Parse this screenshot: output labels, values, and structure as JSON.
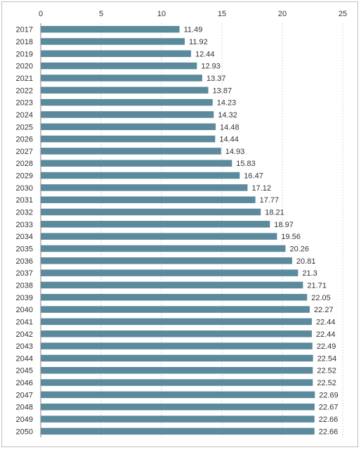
{
  "chart_data": {
    "type": "bar",
    "orientation": "horizontal",
    "title": "",
    "xlabel": "",
    "ylabel": "",
    "xlim": [
      0,
      25
    ],
    "x_ticks": [
      "0",
      "5",
      "10",
      "15",
      "20",
      "25"
    ],
    "x_axis_position": "top",
    "grid": true,
    "legend": "none",
    "bar_color": "#5b8a9c",
    "categories": [
      "2017",
      "2018",
      "2019",
      "2020",
      "2021",
      "2022",
      "2023",
      "2024",
      "2025",
      "2026",
      "2027",
      "2028",
      "2029",
      "2030",
      "2031",
      "2032",
      "2033",
      "2034",
      "2035",
      "2036",
      "2037",
      "2038",
      "2039",
      "2040",
      "2041",
      "2042",
      "2043",
      "2044",
      "2045",
      "2046",
      "2047",
      "2048",
      "2049",
      "2050"
    ],
    "values": [
      11.49,
      11.92,
      12.44,
      12.93,
      13.37,
      13.87,
      14.23,
      14.32,
      14.48,
      14.44,
      14.93,
      15.83,
      16.47,
      17.12,
      17.77,
      18.21,
      18.97,
      19.56,
      20.26,
      20.81,
      21.3,
      21.71,
      22.05,
      22.27,
      22.44,
      22.44,
      22.49,
      22.54,
      22.52,
      22.52,
      22.69,
      22.67,
      22.66,
      22.66
    ],
    "data_labels": [
      "11.49",
      "11.92",
      "12.44",
      "12.93",
      "13.37",
      "13.87",
      "14.23",
      "14.32",
      "14.48",
      "14.44",
      "14.93",
      "15.83",
      "16.47",
      "17.12",
      "17.77",
      "18.21",
      "18.97",
      "19.56",
      "20.26",
      "20.81",
      "21.3",
      "21.71",
      "22.05",
      "22.27",
      "22.44",
      "22.44",
      "22.49",
      "22.54",
      "22.52",
      "22.52",
      "22.69",
      "22.67",
      "22.66",
      "22.66"
    ]
  }
}
